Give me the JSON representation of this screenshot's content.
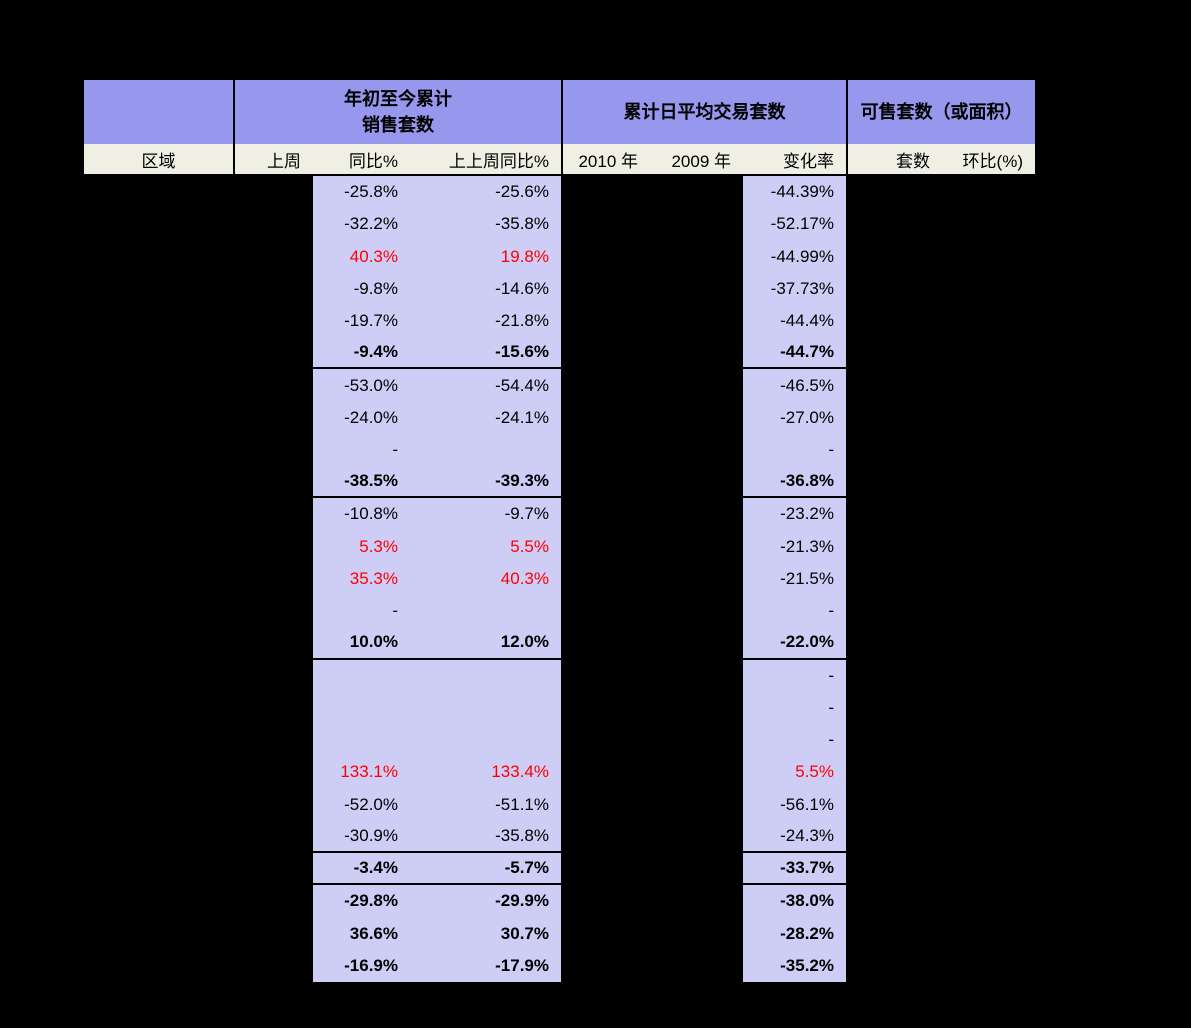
{
  "colors": {
    "background": "#000000",
    "header_bg": "#9797ED",
    "subheader_bg": "#EFEFE3",
    "data_bg": "#CDCDF6",
    "positive_text": "#FF0000",
    "negative_text": "#000000",
    "border": "#000000"
  },
  "header": {
    "groups": [
      {
        "line1": "年初至今累计",
        "line2": "销售套数"
      },
      {
        "line1": "累计日平均交易套数"
      },
      {
        "line1": "可售套数（或面积）"
      }
    ],
    "columns": [
      "区域",
      "上周",
      "同比%",
      "上上周同比%",
      "2010 年",
      "2009 年",
      "变化率",
      "套数",
      "环比(%)"
    ]
  },
  "body": {
    "data_columns": [
      "同比%",
      "上上周同比%",
      "变化率"
    ],
    "rows": [
      {
        "cells": [
          {
            "t": "-25.8%"
          },
          {
            "t": "-25.6%"
          },
          {
            "t": "-44.39%"
          }
        ]
      },
      {
        "cells": [
          {
            "t": "-32.2%"
          },
          {
            "t": "-35.8%"
          },
          {
            "t": "-52.17%"
          }
        ]
      },
      {
        "cells": [
          {
            "t": "40.3%",
            "red": true
          },
          {
            "t": "19.8%",
            "red": true
          },
          {
            "t": "-44.99%"
          }
        ]
      },
      {
        "cells": [
          {
            "t": "-9.8%"
          },
          {
            "t": "-14.6%"
          },
          {
            "t": "-37.73%"
          }
        ]
      },
      {
        "cells": [
          {
            "t": "-19.7%"
          },
          {
            "t": "-21.8%"
          },
          {
            "t": "-44.4%"
          }
        ]
      },
      {
        "bold": true,
        "sep": true,
        "cells": [
          {
            "t": "-9.4%"
          },
          {
            "t": "-15.6%"
          },
          {
            "t": "-44.7%"
          }
        ]
      },
      {
        "cells": [
          {
            "t": "-53.0%"
          },
          {
            "t": "-54.4%"
          },
          {
            "t": "-46.5%"
          }
        ]
      },
      {
        "cells": [
          {
            "t": "-24.0%"
          },
          {
            "t": "-24.1%"
          },
          {
            "t": "-27.0%"
          }
        ]
      },
      {
        "cells": [
          {
            "t": "-"
          },
          {
            "t": ""
          },
          {
            "t": "-"
          }
        ]
      },
      {
        "bold": true,
        "sep": true,
        "cells": [
          {
            "t": "-38.5%"
          },
          {
            "t": "-39.3%"
          },
          {
            "t": "-36.8%"
          }
        ]
      },
      {
        "cells": [
          {
            "t": "-10.8%"
          },
          {
            "t": "-9.7%"
          },
          {
            "t": "-23.2%"
          }
        ]
      },
      {
        "cells": [
          {
            "t": "5.3%",
            "red": true
          },
          {
            "t": "5.5%",
            "red": true
          },
          {
            "t": "-21.3%"
          }
        ]
      },
      {
        "cells": [
          {
            "t": "35.3%",
            "red": true
          },
          {
            "t": "40.3%",
            "red": true
          },
          {
            "t": "-21.5%"
          }
        ]
      },
      {
        "cells": [
          {
            "t": "-"
          },
          {
            "t": ""
          },
          {
            "t": "-"
          }
        ]
      },
      {
        "bold": true,
        "sep": true,
        "cells": [
          {
            "t": "10.0%"
          },
          {
            "t": "12.0%"
          },
          {
            "t": "-22.0%"
          }
        ]
      },
      {
        "cells": [
          {
            "t": ""
          },
          {
            "t": ""
          },
          {
            "t": "-"
          }
        ]
      },
      {
        "cells": [
          {
            "t": ""
          },
          {
            "t": ""
          },
          {
            "t": "-"
          }
        ]
      },
      {
        "cells": [
          {
            "t": ""
          },
          {
            "t": ""
          },
          {
            "t": "-"
          }
        ]
      },
      {
        "cells": [
          {
            "t": "133.1%",
            "red": true
          },
          {
            "t": "133.4%",
            "red": true
          },
          {
            "t": "5.5%",
            "red": true
          }
        ]
      },
      {
        "cells": [
          {
            "t": "-52.0%"
          },
          {
            "t": "-51.1%"
          },
          {
            "t": "-56.1%"
          }
        ]
      },
      {
        "sep": true,
        "cells": [
          {
            "t": "-30.9%"
          },
          {
            "t": "-35.8%"
          },
          {
            "t": "-24.3%"
          }
        ]
      },
      {
        "bold": true,
        "sep": true,
        "cells": [
          {
            "t": "-3.4%"
          },
          {
            "t": "-5.7%"
          },
          {
            "t": "-33.7%"
          }
        ]
      },
      {
        "bold": true,
        "cells": [
          {
            "t": "-29.8%"
          },
          {
            "t": "-29.9%"
          },
          {
            "t": "-38.0%"
          }
        ]
      },
      {
        "bold": true,
        "cells": [
          {
            "t": "36.6%"
          },
          {
            "t": "30.7%"
          },
          {
            "t": "-28.2%"
          }
        ]
      },
      {
        "bold": true,
        "cells": [
          {
            "t": "-16.9%"
          },
          {
            "t": "-17.9%"
          },
          {
            "t": "-35.2%"
          }
        ]
      }
    ]
  }
}
